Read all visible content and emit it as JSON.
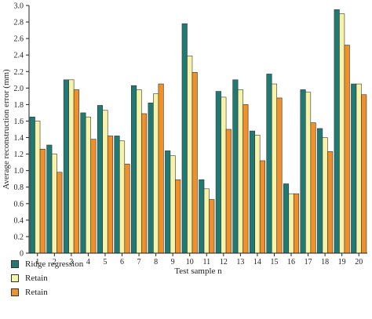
{
  "chart_data": {
    "type": "bar",
    "xlabel": "Test sample n",
    "ylabel": "Average reconstruction error (mm)",
    "ylim": [
      0,
      3.0
    ],
    "yticks": [
      "0",
      "0.2",
      "0.4",
      "0.6",
      "0.8",
      "1.0",
      "1.2",
      "1.4",
      "1.6",
      "1.8",
      "2.0",
      "2.2",
      "2.4",
      "2.6",
      "2.8",
      "3.0"
    ],
    "categories": [
      "1",
      "2",
      "3",
      "4",
      "5",
      "6",
      "7",
      "8",
      "9",
      "10",
      "11",
      "12",
      "13",
      "14",
      "15",
      "16",
      "17",
      "18",
      "19",
      "20"
    ],
    "legend_position": "bottom-left",
    "grid": false,
    "series": [
      {
        "name": "Ridge regression",
        "color": "#1f7a73",
        "values": [
          1.65,
          1.31,
          2.1,
          1.7,
          1.79,
          1.42,
          2.03,
          1.82,
          1.24,
          2.78,
          0.89,
          1.96,
          2.1,
          1.48,
          2.17,
          0.84,
          1.98,
          1.51,
          2.95,
          2.05
        ]
      },
      {
        "name": "Retain",
        "color": "#f7f3a8",
        "values": [
          1.6,
          1.2,
          2.1,
          1.65,
          1.73,
          1.36,
          1.98,
          1.93,
          1.18,
          2.39,
          0.78,
          1.89,
          1.98,
          1.43,
          2.05,
          0.72,
          1.95,
          1.4,
          2.9,
          2.05
        ]
      },
      {
        "name": "Retain",
        "color": "#f0902a",
        "values": [
          1.26,
          0.98,
          1.98,
          1.38,
          1.42,
          1.08,
          1.69,
          2.05,
          0.89,
          2.19,
          0.65,
          1.5,
          1.8,
          1.12,
          1.88,
          0.72,
          1.58,
          1.23,
          2.52,
          1.92
        ]
      }
    ]
  }
}
